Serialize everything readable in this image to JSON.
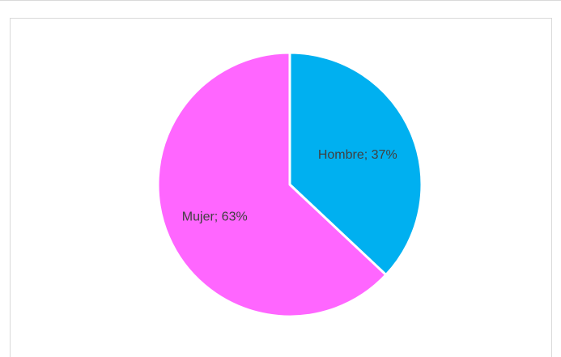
{
  "chart_data": {
    "type": "pie",
    "title": "",
    "categories": [
      "Hombre",
      "Mujer"
    ],
    "values": [
      37,
      63
    ],
    "unit": "%",
    "data_labels": [
      "Hombre; 37%",
      "Mujer; 63%"
    ],
    "colors": [
      "#00b0f0",
      "#ff66ff"
    ],
    "slice_border_color": "#ffffff",
    "legend": "none",
    "start_angle": "12 o'clock, clockwise"
  }
}
